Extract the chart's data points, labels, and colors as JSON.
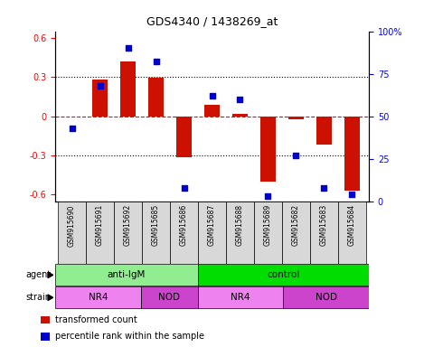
{
  "title": "GDS4340 / 1438269_at",
  "samples": [
    "GSM915690",
    "GSM915691",
    "GSM915692",
    "GSM915685",
    "GSM915686",
    "GSM915687",
    "GSM915688",
    "GSM915689",
    "GSM915682",
    "GSM915683",
    "GSM915684"
  ],
  "bar_values": [
    0.0,
    0.28,
    0.42,
    0.295,
    -0.31,
    0.09,
    0.02,
    -0.5,
    -0.02,
    -0.22,
    -0.57
  ],
  "scatter_values": [
    43,
    68,
    90,
    82,
    8,
    62,
    60,
    3,
    27,
    8,
    4
  ],
  "agent_groups": [
    {
      "label": "anti-IgM",
      "start": 0,
      "end": 5,
      "color": "#90ee90"
    },
    {
      "label": "control",
      "start": 5,
      "end": 11,
      "color": "#00dd00"
    }
  ],
  "strain_groups": [
    {
      "label": "NR4",
      "start": 0,
      "end": 3,
      "color": "#ee82ee"
    },
    {
      "label": "NOD",
      "start": 3,
      "end": 5,
      "color": "#cc44cc"
    },
    {
      "label": "NR4",
      "start": 5,
      "end": 8,
      "color": "#ee82ee"
    },
    {
      "label": "NOD",
      "start": 8,
      "end": 11,
      "color": "#cc44cc"
    }
  ],
  "bar_color": "#cc1100",
  "scatter_color": "#0000cc",
  "ylim": [
    -0.65,
    0.65
  ],
  "y2lim": [
    0,
    100
  ],
  "yticks": [
    -0.6,
    -0.3,
    0.0,
    0.3,
    0.6
  ],
  "y2ticks": [
    0,
    25,
    50,
    75,
    100
  ],
  "y2ticklabels": [
    "0",
    "25",
    "50",
    "75",
    "100%"
  ],
  "hlines": [
    -0.3,
    0.0,
    0.3
  ],
  "legend_items": [
    {
      "label": "transformed count",
      "color": "#cc1100"
    },
    {
      "label": "percentile rank within the sample",
      "color": "#0000cc"
    }
  ],
  "bar_width": 0.55
}
